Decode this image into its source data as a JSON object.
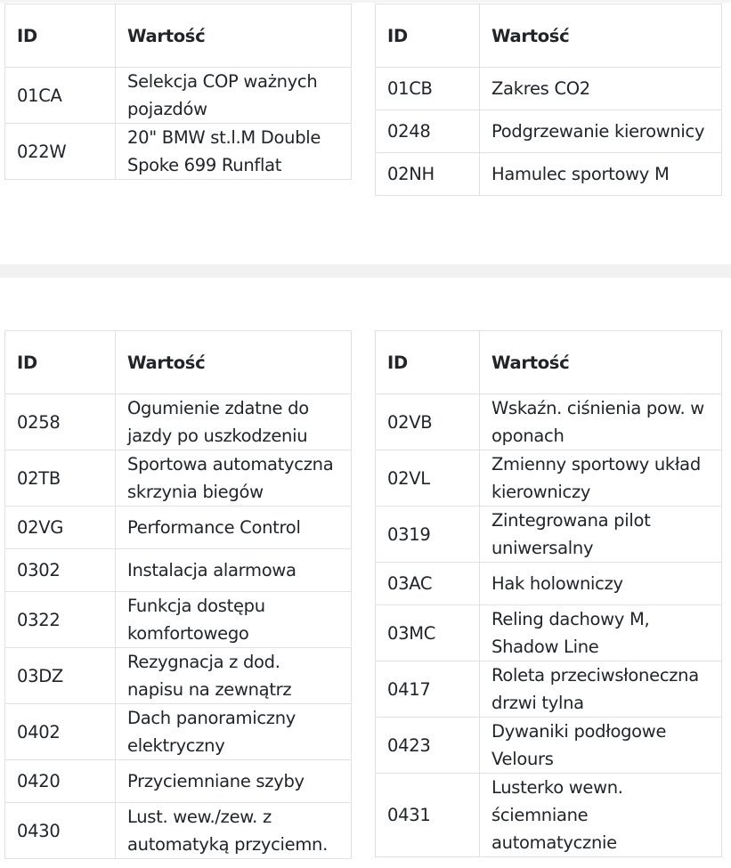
{
  "columns": {
    "id": "ID",
    "value": "Wartość"
  },
  "section1": {
    "left": [
      {
        "id": "01CA",
        "value": "Selekcja COP ważnych pojazdów"
      },
      {
        "id": "022W",
        "value": "20\" BMW st.l.M Double Spoke 699 Runflat"
      }
    ],
    "right": [
      {
        "id": "01CB",
        "value": "Zakres CO2"
      },
      {
        "id": "0248",
        "value": "Podgrzewanie kierownicy"
      },
      {
        "id": "02NH",
        "value": "Hamulec sportowy M"
      }
    ]
  },
  "section2": {
    "left": [
      {
        "id": "0258",
        "value": "Ogumienie zdatne do jazdy po uszkodzeniu"
      },
      {
        "id": "02TB",
        "value": "Sportowa automatyczna skrzynia biegów"
      },
      {
        "id": "02VG",
        "value": "Performance Control"
      },
      {
        "id": "0302",
        "value": "Instalacja alarmowa"
      },
      {
        "id": "0322",
        "value": "Funkcja dostępu komfortowego"
      },
      {
        "id": "03DZ",
        "value": "Rezygnacja z dod. napisu na zewnątrz"
      },
      {
        "id": "0402",
        "value": "Dach panoramiczny elektryczny"
      },
      {
        "id": "0420",
        "value": "Przyciemniane szyby"
      },
      {
        "id": "0430",
        "value": "Lust. wew./zew. z automatyką przyciemn."
      }
    ],
    "right": [
      {
        "id": "02VB",
        "value": "Wskaźn. ciśnienia pow. w oponach"
      },
      {
        "id": "02VL",
        "value": "Zmienny sportowy układ kierowniczy"
      },
      {
        "id": "0319",
        "value": "Zintegrowana pilot uniwersalny"
      },
      {
        "id": "03AC",
        "value": "Hak holowniczy"
      },
      {
        "id": "03MC",
        "value": "Reling dachowy M, Shadow Line"
      },
      {
        "id": "0417",
        "value": "Roleta przeciwsłoneczna drzwi tylna"
      },
      {
        "id": "0423",
        "value": "Dywaniki podłogowe Velours"
      },
      {
        "id": "0431",
        "value": "Lusterko wewn. ściemniane automatycznie"
      }
    ]
  }
}
